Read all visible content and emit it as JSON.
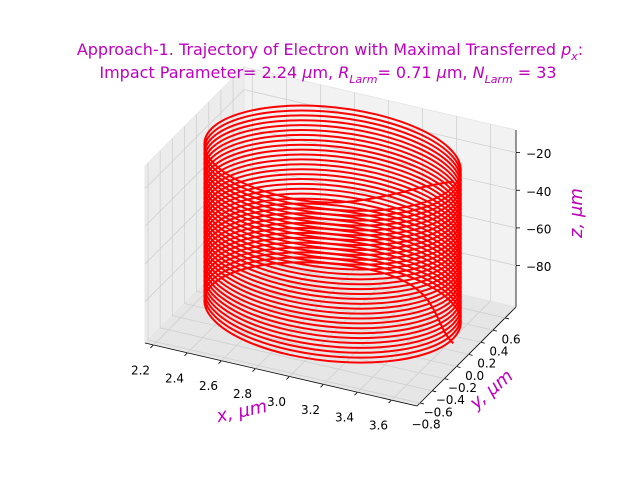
{
  "chart_data": {
    "type": "line3d",
    "title": [
      [
        "Approach-1. Trajectory of Electron with Maximal Transferred ",
        "p",
        "x",
        ":"
      ],
      [
        "Impact Parameter= 2.24 ",
        "μ",
        "m, ",
        "R",
        "Larm",
        "= 0.71 ",
        "μ",
        "m, ",
        "N",
        "Larm",
        " = 33"
      ]
    ],
    "xlabel": "x, μm",
    "ylabel": "y, μm",
    "zlabel": "z, μm",
    "color": "#ff0000",
    "xlim": [
      2.15,
      3.75
    ],
    "ylim": [
      -0.85,
      0.78
    ],
    "zlim": [
      -102,
      -8
    ],
    "xticks": [
      2.2,
      2.4,
      2.6,
      2.8,
      {
        "value": 3,
        "label": "3.0"
      },
      3.2,
      3.4,
      3.6
    ],
    "yticks": [
      {
        "value": -0.8,
        "label": "−0.8"
      },
      {
        "value": -0.6,
        "label": "−0.6"
      },
      {
        "value": -0.4,
        "label": "−0.4"
      },
      {
        "value": -0.2,
        "label": "−0.2"
      },
      {
        "value": 0,
        "label": "0.0"
      },
      0.2,
      0.4,
      0.6
    ],
    "zticks": [
      {
        "value": -80,
        "label": "−80"
      },
      {
        "value": -60,
        "label": "−60"
      },
      {
        "value": -40,
        "label": "−40"
      },
      {
        "value": -20,
        "label": "−20"
      }
    ],
    "grid": true,
    "x": [
      3.66,
      2.95,
      2.24,
      2.95,
      3.66,
      2.95,
      2.24,
      2.95,
      3.66,
      2.95,
      2.24,
      2.95,
      3.66,
      2.95,
      2.24,
      2.95,
      3.66,
      2.95,
      2.24,
      2.95,
      3.66,
      2.95,
      2.24,
      2.95,
      3.66,
      2.95,
      2.24,
      2.95,
      3.66,
      2.95,
      2.24,
      2.95,
      3.66,
      2.95,
      2.24,
      2.95,
      3.66,
      2.95,
      2.24,
      2.95,
      3.66,
      2.95,
      2.24,
      2.95,
      3.66,
      2.95,
      2.24,
      2.95,
      3.66,
      2.95,
      2.24,
      2.95,
      3.66,
      2.95,
      2.24,
      2.95,
      3.66,
      2.95,
      2.24,
      2.95,
      3.66,
      2.95,
      2.24,
      2.95,
      3.66,
      2.95,
      2.24,
      2.95,
      3.66,
      2.95,
      2.24,
      2.95,
      3.66,
      2.95,
      2.24,
      2.95,
      3.66,
      2.95,
      2.24,
      2.95,
      3.66,
      2.95,
      2.24,
      2.95,
      3.66,
      2.95,
      2.24,
      2.95,
      3.66,
      2.95,
      2.24,
      2.95,
      3.66,
      2.95,
      2.24,
      2.95,
      3.66,
      2.95,
      2.24,
      2.95,
      3.66,
      2.95,
      2.24,
      2.95,
      3.66,
      2.95,
      2.24,
      2.95,
      3.66,
      2.95,
      2.24,
      2.95,
      3.66,
      2.95,
      2.24,
      2.95,
      3.66,
      2.95,
      2.24,
      2.95,
      3.66,
      2.95,
      2.24,
      2.95,
      3.66,
      2.95,
      2.24,
      2.95,
      3.66,
      2.95,
      2.24,
      2.95,
      3.66
    ],
    "y": [
      0,
      0.71,
      0,
      -0.71,
      0,
      0.71,
      0,
      -0.71,
      0,
      0.71,
      0,
      -0.71,
      0,
      0.71,
      0,
      -0.71,
      0,
      0.71,
      0,
      -0.71,
      0,
      0.71,
      0,
      -0.71,
      0,
      0.71,
      0,
      -0.71,
      0,
      0.71,
      0,
      -0.71,
      0,
      0.71,
      0,
      -0.71,
      0,
      0.71,
      0,
      -0.71,
      0,
      0.71,
      0,
      -0.71,
      0,
      0.71,
      0,
      -0.71,
      0,
      0.71,
      0,
      -0.71,
      0,
      0.71,
      0,
      -0.71,
      0,
      0.71,
      0,
      -0.71,
      0,
      0.71,
      0,
      -0.71,
      0,
      0.71,
      0,
      -0.71,
      0,
      0.71,
      0,
      -0.71,
      0,
      0.71,
      0,
      -0.71,
      0,
      0.71,
      0,
      -0.71,
      0,
      0.71,
      0,
      -0.71,
      0,
      0.71,
      0,
      -0.71,
      0,
      0.71,
      0,
      -0.71,
      0,
      0.71,
      0,
      -0.71,
      0,
      0.71,
      0,
      -0.71,
      0,
      0.71,
      0,
      -0.71,
      0,
      0.71,
      0,
      -0.71,
      0,
      0.71,
      0,
      -0.71,
      0,
      0.71,
      0,
      -0.71,
      0,
      0.71,
      0,
      -0.71,
      0,
      0.71,
      0,
      -0.71,
      0,
      0.71,
      0,
      -0.71,
      0,
      0.71,
      0,
      -0.71,
      0
    ],
    "z": [
      -98,
      -97.35,
      -96.7,
      -96.05,
      -95.4,
      -94.75,
      -94.1,
      -93.45,
      -92.8,
      -92.15,
      -91.5,
      -90.85,
      -90.2,
      -89.55,
      -88.9,
      -88.25,
      -87.6,
      -86.95,
      -86.3,
      -85.65,
      -85,
      -84.35,
      -83.7,
      -83.05,
      -82.4,
      -81.75,
      -81.1,
      -80.45,
      -79.8,
      -79.15,
      -78.5,
      -77.85,
      -77.2,
      -76.55,
      -75.9,
      -75.25,
      -74.6,
      -73.95,
      -73.3,
      -72.65,
      -72,
      -71.35,
      -70.7,
      -70.05,
      -69.4,
      -68.75,
      -68.1,
      -67.45,
      -66.8,
      -66.15,
      -65.5,
      -64.85,
      -64.2,
      -63.55,
      -62.9,
      -62.25,
      -61.6,
      -60.95,
      -60.3,
      -59.65,
      -59,
      -58.35,
      -57.7,
      -57.05,
      -56.4,
      -55.75,
      -55.1,
      -54.45,
      -53.8,
      -53.15,
      -52.5,
      -51.85,
      -51.2,
      -50.55,
      -49.9,
      -49.25,
      -48.6,
      -47.95,
      -47.3,
      -46.65,
      -46,
      -45.35,
      -44.7,
      -44.05,
      -43.4,
      -42.75,
      -42.1,
      -41.45,
      -40.8,
      -40.15,
      -39.5,
      -38.85,
      -38.2,
      -37.55,
      -36.9,
      -36.25,
      -35.6,
      -34.95,
      -34.3,
      -33.65,
      -33,
      -32.35,
      -31.7,
      -31.05,
      -30.4,
      -29.75,
      -29.1,
      -28.45,
      -27.8,
      -27.15,
      -26.5,
      -25.85,
      -25.2,
      -24.55,
      -23.9,
      -23.25,
      -22.6,
      -21.95,
      -21.3,
      -20.65,
      -20,
      -19.35,
      -18.7,
      -18.05,
      -17.4,
      -16.75,
      -16.1,
      -15.45,
      -14.8,
      -14.15,
      -13.5,
      -12.85,
      -12.2
    ]
  }
}
